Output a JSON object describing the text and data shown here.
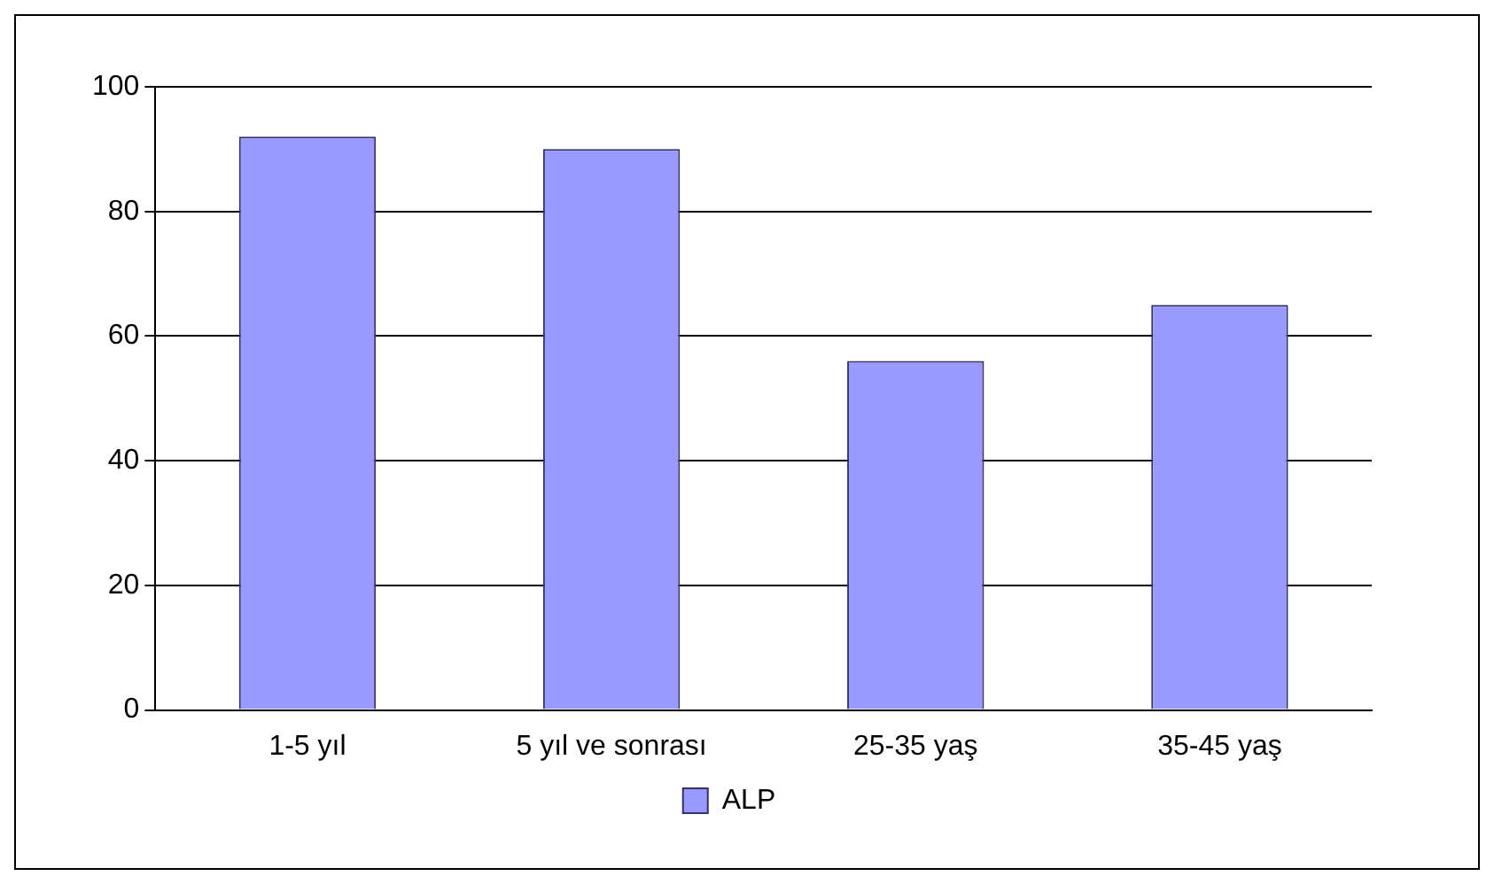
{
  "chart_data": {
    "type": "bar",
    "categories": [
      "1-5 yıl",
      "5 yıl ve sonrası",
      "25-35 yaş",
      "35-45 yaş"
    ],
    "series": [
      {
        "name": "ALP",
        "color": "#9999ff",
        "values": [
          92,
          90,
          56,
          65
        ]
      }
    ],
    "ylim": [
      0,
      100
    ],
    "yticks": [
      0,
      20,
      40,
      60,
      80,
      100
    ],
    "grid": "y",
    "legend": "bottom"
  }
}
